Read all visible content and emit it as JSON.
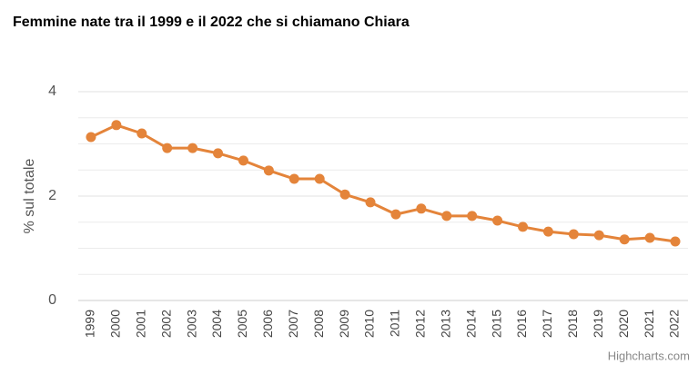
{
  "chart_data": {
    "type": "line",
    "title": "Femmine nate tra il 1999 e il 2022 che si chiamano Chiara",
    "y_label": "% sul totale",
    "credits": "Highcharts.com",
    "categories": [
      "1999",
      "2000",
      "2001",
      "2002",
      "2003",
      "2004",
      "2005",
      "2006",
      "2007",
      "2008",
      "2009",
      "2010",
      "2011",
      "2012",
      "2013",
      "2014",
      "2015",
      "2016",
      "2017",
      "2018",
      "2019",
      "2020",
      "2021",
      "2022"
    ],
    "values": [
      3.13,
      3.36,
      3.2,
      2.92,
      2.92,
      2.82,
      2.68,
      2.49,
      2.33,
      2.33,
      2.03,
      1.88,
      1.65,
      1.76,
      1.62,
      1.62,
      1.53,
      1.41,
      1.32,
      1.27,
      1.25,
      1.17,
      1.2,
      1.13
    ],
    "color": "#e4843a",
    "ylim": [
      0,
      4
    ],
    "yticks": [
      0,
      2,
      4
    ],
    "y_minor_grid": [
      0.5,
      1,
      1.5,
      2.5,
      3,
      3.5
    ],
    "grid": true
  }
}
